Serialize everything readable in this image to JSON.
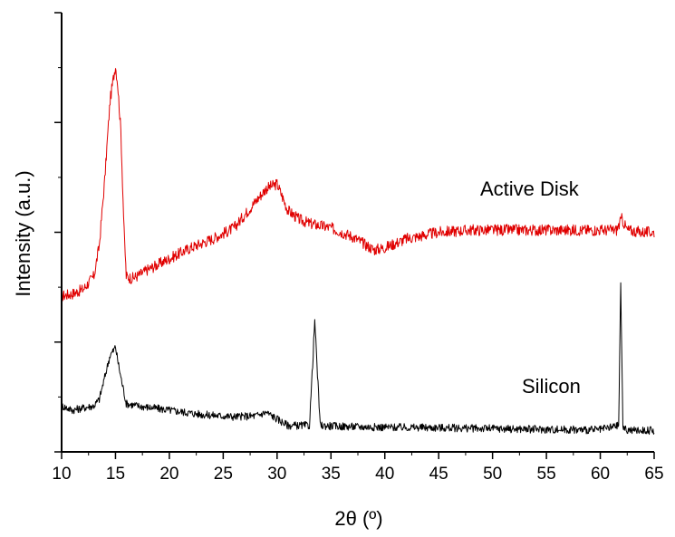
{
  "chart_data": {
    "type": "line",
    "title": "",
    "xlabel": "2θ (º)",
    "ylabel": "Intensity (a.u.)",
    "xlim": [
      10,
      65
    ],
    "ylim": [
      0,
      100
    ],
    "x_ticks": [
      10,
      15,
      20,
      25,
      30,
      35,
      40,
      45,
      50,
      55,
      60,
      65
    ],
    "y_tick_labels_shown": false,
    "grid": false,
    "legend": "none",
    "annotations": [
      "Active Disk",
      "Silicon"
    ],
    "series": [
      {
        "name": "Active Disk",
        "color": "#e00000",
        "x": [
          10,
          11,
          12,
          13,
          13.5,
          14,
          14.5,
          14.8,
          15,
          15.2,
          15.5,
          15.8,
          16,
          16.5,
          17,
          18,
          20,
          22,
          24,
          26,
          27,
          28,
          29,
          30,
          31,
          32,
          33,
          35,
          37,
          38,
          39,
          40,
          42,
          45,
          48,
          50,
          53,
          55,
          58,
          60,
          61.5,
          62,
          62.5,
          64,
          65
        ],
        "y": [
          35.5,
          36,
          37,
          40,
          47,
          62,
          80,
          85,
          88,
          84,
          73,
          50,
          40,
          39.5,
          40,
          41.5,
          44,
          46.5,
          48.5,
          51,
          54,
          57,
          60,
          61,
          55,
          53,
          52,
          51,
          49,
          47.5,
          46,
          46.5,
          48.5,
          50,
          50.5,
          50.5,
          50.5,
          50.5,
          50.5,
          50.5,
          50.5,
          53,
          50.5,
          50,
          50
        ]
      },
      {
        "name": "Silicon",
        "color": "#000000",
        "x": [
          10,
          11,
          12,
          13,
          13.5,
          14,
          14.5,
          14.8,
          15,
          15.2,
          15.5,
          16,
          17,
          20,
          23,
          26,
          28,
          29,
          30,
          31,
          33,
          33.3,
          33.5,
          33.7,
          34,
          36,
          40,
          45,
          50,
          55,
          60,
          61.7,
          61.9,
          62.1,
          62.3,
          63,
          65
        ],
        "y": [
          10.5,
          9.5,
          10,
          10.5,
          12,
          17,
          22,
          23,
          24,
          21,
          17,
          11,
          10.5,
          9.5,
          8.5,
          8,
          8.2,
          9,
          7.5,
          6,
          6,
          20,
          30,
          20,
          6,
          5.8,
          5.6,
          5.5,
          5.3,
          5.1,
          5,
          6,
          38,
          6,
          5,
          4.9,
          4.9
        ]
      }
    ]
  }
}
